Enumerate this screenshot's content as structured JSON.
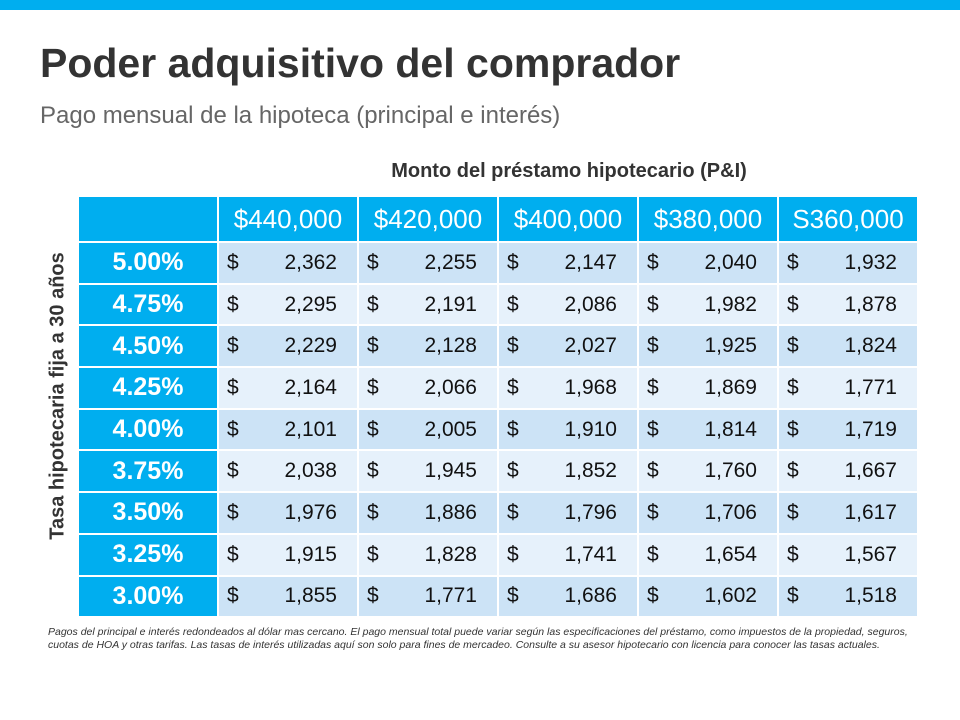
{
  "title": "Poder adquisitivo del comprador",
  "subtitle": "Pago mensual de la hipoteca (principal e interés)",
  "colors": {
    "accent": "#00aeef",
    "row_dark": "#cce3f6",
    "row_light": "#e6f1fb"
  },
  "table": {
    "column_group_label": "Monto del préstamo hipotecario (P&I)",
    "row_group_label": "Tasa hipotecaria fija a 30 años",
    "currency_symbol": "$",
    "columns": [
      "$440,000",
      "$420,000",
      "$400,000",
      "$380,000",
      "S360,000"
    ],
    "rows": [
      {
        "rate": "5.00%",
        "values": [
          "2,362",
          "2,255",
          "2,147",
          "2,040",
          "1,932"
        ]
      },
      {
        "rate": "4.75%",
        "values": [
          "2,295",
          "2,191",
          "2,086",
          "1,982",
          "1,878"
        ]
      },
      {
        "rate": "4.50%",
        "values": [
          "2,229",
          "2,128",
          "2,027",
          "1,925",
          "1,824"
        ]
      },
      {
        "rate": "4.25%",
        "values": [
          "2,164",
          "2,066",
          "1,968",
          "1,869",
          "1,771"
        ]
      },
      {
        "rate": "4.00%",
        "values": [
          "2,101",
          "2,005",
          "1,910",
          "1,814",
          "1,719"
        ]
      },
      {
        "rate": "3.75%",
        "values": [
          "2,038",
          "1,945",
          "1,852",
          "1,760",
          "1,667"
        ]
      },
      {
        "rate": "3.50%",
        "values": [
          "1,976",
          "1,886",
          "1,796",
          "1,706",
          "1,617"
        ]
      },
      {
        "rate": "3.25%",
        "values": [
          "1,915",
          "1,828",
          "1,741",
          "1,654",
          "1,567"
        ]
      },
      {
        "rate": "3.00%",
        "values": [
          "1,855",
          "1,771",
          "1,686",
          "1,602",
          "1,518"
        ]
      }
    ]
  },
  "footnote": "Pagos del principal e interés redondeados al dólar mas cercano. El pago mensual total puede variar según las especificaciones del préstamo, como impuestos de la propiedad, seguros, cuotas de HOA y otras tarifas. Las tasas de interés utilizadas aquí son solo para fines de mercadeo. Consulte a su asesor hipotecario con licencia para conocer las tasas actuales."
}
